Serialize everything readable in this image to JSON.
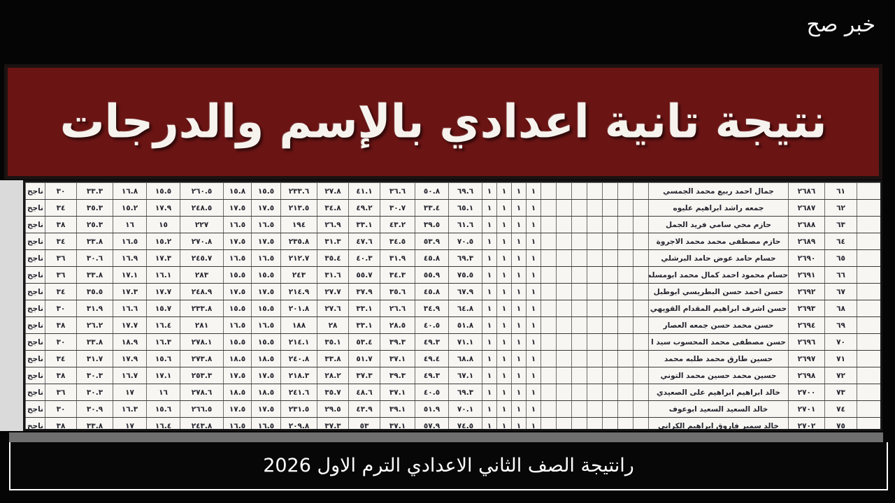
{
  "watermark": {
    "text": "خبر صح"
  },
  "banner": {
    "title": "نتيجة تانية اعدادي بالإسم والدرجات",
    "bg_color": "#6a1414",
    "text_color": "#f6f3ee"
  },
  "caption": {
    "text": "رانتيجة الصف الثاني الاعدادي الترم الاول 2026"
  },
  "table": {
    "stamp_label": "ناجح",
    "rows": [
      {
        "serial": "٦١",
        "seat": "٢٦٨٦",
        "name": "جمال احمد ربيع محمد الجمسي",
        "stamp": "ناجح",
        "flags": [
          "١",
          "١",
          "١",
          "١"
        ],
        "scores": [
          "٣٠",
          "٣٣.٣",
          "١٦.٨",
          "١٥.٥",
          "٢٦٠.٥",
          "١٥.٨",
          "١٥.٥",
          "٢٣٣.٦",
          "٢٧.٨",
          "٤١.١",
          "٣٦.٦",
          "٥٠.٨",
          "٦٩.٦"
        ]
      },
      {
        "serial": "٦٢",
        "seat": "٢٦٨٧",
        "name": "جمعه راشد ابراهيم عليوه",
        "stamp": "ناجح",
        "flags": [
          "١",
          "١",
          "١",
          "١"
        ],
        "scores": [
          "٣٤",
          "٣٥.٣",
          "١٥.٢",
          "١٧.٩",
          "٢٤٨.٥",
          "١٧.٥",
          "١٧.٥",
          "٢١٣.٥",
          "٣٤.٨",
          "٤٩.٢",
          "٣٠.٧",
          "٣٣.٤",
          "٦٥.١"
        ]
      },
      {
        "serial": "٦٣",
        "seat": "٢٦٨٨",
        "name": "حازم محي سامي فريد الجمل",
        "stamp": "ناجح",
        "flags": [
          "١",
          "١",
          "١",
          "١"
        ],
        "scores": [
          "٣٨",
          "٢٥.٣",
          "١٦",
          "١٥",
          "٢٢٧",
          "١٦.٥",
          "١٦.٥",
          "١٩٤",
          "٢٦.٩",
          "٣٣.١",
          "٤٣.٢",
          "٣٩.٥",
          "٦١.٦"
        ]
      },
      {
        "serial": "٦٤",
        "seat": "٢٦٨٩",
        "name": "حازم مصطفى محمد محمد الاجروة",
        "stamp": "ناجح",
        "flags": [
          "١",
          "١",
          "١",
          "١"
        ],
        "scores": [
          "٣٤",
          "٣٣.٨",
          "١٦.٥",
          "١٥.٢",
          "٢٧٠.٨",
          "١٧.٥",
          "١٧.٥",
          "٢٣٥.٨",
          "٣١.٣",
          "٤٧.٦",
          "٣٤.٥",
          "٥٣.٩",
          "٧٠.٥"
        ]
      },
      {
        "serial": "٦٥",
        "seat": "٢٦٩٠",
        "name": "حسام حامد عوض حامد البرشلي",
        "stamp": "ناجح",
        "flags": [
          "١",
          "١",
          "١",
          "١"
        ],
        "scores": [
          "٣٦",
          "٣٠.٦",
          "١٦.٩",
          "١٧.٣",
          "٢٤٥.٧",
          "١٦.٥",
          "١٦.٥",
          "٢١٢.٧",
          "٣٥.٤",
          "٤٠.٣",
          "٣١.٩",
          "٤٥.٨",
          "٦٩.٣"
        ]
      },
      {
        "serial": "٦٦",
        "seat": "٢٦٩١",
        "name": "حسام محمود احمد كمال محمد ابومسلم",
        "stamp": "ناجح",
        "flags": [
          "١",
          "١",
          "١",
          "١"
        ],
        "scores": [
          "٣٦",
          "٣٣.٨",
          "١٧.١",
          "١٦.١",
          "٢٨٣",
          "١٥.٥",
          "١٥.٥",
          "٢٤٣",
          "٣١.٦",
          "٥٥.٧",
          "٣٤.٣",
          "٥٥.٩",
          "٧٥.٥"
        ]
      },
      {
        "serial": "٦٧",
        "seat": "٢٦٩٢",
        "name": "حسن احمد حسن البطريسي ابوطبل",
        "stamp": "ناجح",
        "flags": [
          "١",
          "١",
          "١",
          "١"
        ],
        "scores": [
          "٣٤",
          "٣٥.٥",
          "١٧.٣",
          "١٧.٧",
          "٢٤٨.٩",
          "١٧.٥",
          "١٧.٥",
          "٢١٤.٩",
          "٢٧.٧",
          "٣٧.٩",
          "٣٥.٦",
          "٤٥.٨",
          "٦٧.٩"
        ]
      },
      {
        "serial": "٦٨",
        "seat": "٢٦٩٣",
        "name": "حسن اشرف ابراهيم المقدام القويهي",
        "stamp": "ناجح",
        "flags": [
          "١",
          "١",
          "١",
          "١"
        ],
        "scores": [
          "٣٠",
          "٣١.٩",
          "١٦.٦",
          "١٥.٧",
          "٢٣٣.٨",
          "١٥.٥",
          "١٥.٥",
          "٢٠١.٨",
          "٢٧.٦",
          "٣٣.١",
          "٢٦.٦",
          "٣٤.٩",
          "٦٤.٨"
        ]
      },
      {
        "serial": "٦٩",
        "seat": "٢٦٩٤",
        "name": "حسن محمد حسن جمعه العصار",
        "stamp": "ناجح",
        "flags": [
          "١",
          "١",
          "١",
          "١"
        ],
        "scores": [
          "٣٨",
          "٢٦.٢",
          "١٧.٧",
          "١٦.٤",
          "٢٨١",
          "١٦.٥",
          "١٦.٥",
          "١٨٨",
          "٢٨",
          "٣٣.١",
          "٢٨.٥",
          "٤٠.٥",
          "٥١.٨"
        ]
      },
      {
        "serial": "٧٠",
        "seat": "٢٦٩٦",
        "name": "حسن مصطفى محمد المحسوب سيد ا",
        "stamp": "ناجح",
        "flags": [
          "١",
          "١",
          "١",
          "١"
        ],
        "scores": [
          "٣٠",
          "٣٣.٨",
          "١٨.٩",
          "١٦.٣",
          "٢٧٨.١",
          "١٥.٥",
          "١٥.٥",
          "٢١٤.١",
          "٣٥.١",
          "٥٣.٤",
          "٣٩.٣",
          "٤٩.٣",
          "٧١.١"
        ]
      },
      {
        "serial": "٧١",
        "seat": "٢٦٩٧",
        "name": "حسين طارق محمد طلبه محمد",
        "stamp": "ناجح",
        "flags": [
          "١",
          "١",
          "١",
          "١"
        ],
        "scores": [
          "٣٤",
          "٣١.٧",
          "١٧.٩",
          "١٥.٦",
          "٢٧٣.٨",
          "١٨.٥",
          "١٨.٥",
          "٢٤٠.٨",
          "٣٣.٨",
          "٥١.٧",
          "٣٧.١",
          "٤٩.٤",
          "٦٨.٨"
        ]
      },
      {
        "serial": "٧٢",
        "seat": "٢٦٩٨",
        "name": "حسين محمد حسين محمد التوني",
        "stamp": "ناجح",
        "flags": [
          "١",
          "١",
          "١",
          "١"
        ],
        "scores": [
          "٣٨",
          "٣٠.٣",
          "١٦.٧",
          "١٧.١",
          "٢٥٣.٣",
          "١٧.٥",
          "١٧.٥",
          "٢١٨.٣",
          "٢٨.٢",
          "٣٧.٣",
          "٣٩.٣",
          "٤٩.٣",
          "٦٧.١"
        ]
      },
      {
        "serial": "٧٣",
        "seat": "٢٧٠٠",
        "name": "خالد ابراهيم ابراهيم على الصعيدي",
        "stamp": "ناجح",
        "flags": [
          "١",
          "١",
          "١",
          "١"
        ],
        "scores": [
          "٣٦",
          "٣٠.٣",
          "١٧",
          "١٦",
          "٢٧٨.٦",
          "١٨.٥",
          "١٨.٥",
          "٢٤١.٦",
          "٣٥.٧",
          "٤٨.٦",
          "٣٧.١",
          "٤٠.٥",
          "٦٩.٣"
        ]
      },
      {
        "serial": "٧٤",
        "seat": "٢٧٠١",
        "name": "خالد السعيد السعيد ابوعوف",
        "stamp": "ناجح",
        "flags": [
          "١",
          "١",
          "١",
          "١"
        ],
        "scores": [
          "٣٠",
          "٣٠.٩",
          "١٦.٣",
          "١٥.٦",
          "٢٦٦.٥",
          "١٧.٥",
          "١٧.٥",
          "٢٣١.٥",
          "٢٩.٥",
          "٤٣.٩",
          "٣٩.١",
          "٥١.٩",
          "٧٠.١"
        ]
      },
      {
        "serial": "٧٥",
        "seat": "٢٧٠٢",
        "name": "خالد سمير فاروق ابراهيم الكراني",
        "stamp": "ناجح",
        "flags": [
          "١",
          "١",
          "١",
          "١"
        ],
        "scores": [
          "٣٨",
          "٣٣.٨",
          "١٧",
          "١٦.٤",
          "٢٤٣.٨",
          "١٦.٥",
          "١٦.٥",
          "٢٠٩.٨",
          "٣٧.٣",
          "٥٣",
          "٣٧.١",
          "٥٧.٩",
          "٧٤.٥"
        ]
      }
    ]
  }
}
